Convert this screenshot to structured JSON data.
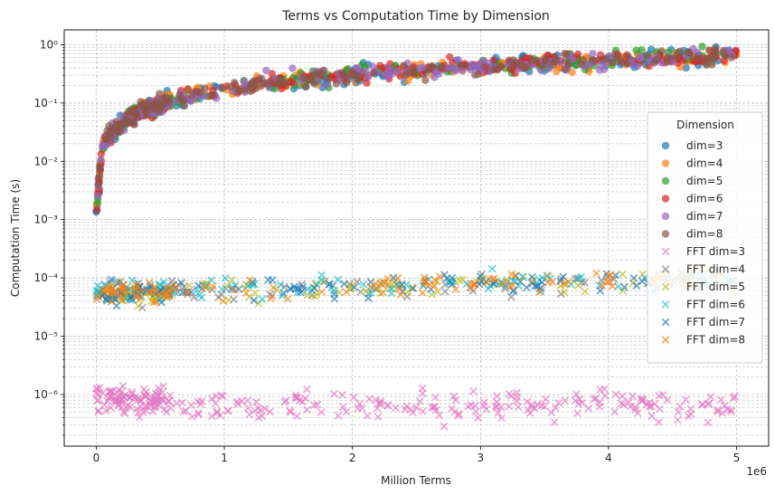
{
  "chart_data": {
    "type": "scatter",
    "title": "Terms vs Computation Time by Dimension",
    "xlabel": "Million Terms",
    "ylabel": "Computation Time (s)",
    "x_offset_label": "1e6",
    "xlim": [
      -250000,
      5250000
    ],
    "ylim": [
      1.3e-07,
      1.8
    ],
    "yscale": "log",
    "grid": true,
    "x_ticks": [
      0,
      1000000,
      2000000,
      3000000,
      4000000,
      5000000
    ],
    "x_tick_labels": [
      "0",
      "1",
      "2",
      "3",
      "4",
      "5"
    ],
    "y_ticks": [
      1e-06,
      1e-05,
      0.0001,
      0.001,
      0.01,
      0.1,
      1
    ],
    "y_tick_labels": [
      "10⁻⁶",
      "10⁻⁵",
      "10⁻⁴",
      "10⁻³",
      "10⁻²",
      "10⁻¹",
      "10⁰"
    ],
    "legend": {
      "title": "Dimension",
      "placement": "center-right"
    },
    "series": [
      {
        "name": "dim=3",
        "marker": "circle",
        "color": "#1f77b4",
        "model": "standard",
        "x_range": [
          0,
          5000000
        ]
      },
      {
        "name": "dim=4",
        "marker": "circle",
        "color": "#ff7f0e",
        "model": "standard",
        "x_range": [
          0,
          5000000
        ]
      },
      {
        "name": "dim=5",
        "marker": "circle",
        "color": "#2ca02c",
        "model": "standard",
        "x_range": [
          0,
          5000000
        ]
      },
      {
        "name": "dim=6",
        "marker": "circle",
        "color": "#d62728",
        "model": "standard",
        "x_range": [
          0,
          5000000
        ]
      },
      {
        "name": "dim=7",
        "marker": "circle",
        "color": "#9467bd",
        "model": "standard",
        "x_range": [
          0,
          5000000
        ]
      },
      {
        "name": "dim=8",
        "marker": "circle",
        "color": "#8c564b",
        "model": "standard",
        "x_range": [
          0,
          5000000
        ]
      },
      {
        "name": "FFT dim=3",
        "marker": "x",
        "color": "#e377c2",
        "model": "fft_low",
        "x_range": [
          0,
          5000000
        ]
      },
      {
        "name": "FFT dim=4",
        "marker": "x",
        "color": "#7f7f7f",
        "model": "fft",
        "x_range": [
          0,
          5000000
        ]
      },
      {
        "name": "FFT dim=5",
        "marker": "x",
        "color": "#bcbd22",
        "model": "fft",
        "x_range": [
          0,
          5000000
        ]
      },
      {
        "name": "FFT dim=6",
        "marker": "x",
        "color": "#17becf",
        "model": "fft",
        "x_range": [
          0,
          5000000
        ]
      },
      {
        "name": "FFT dim=7",
        "marker": "x",
        "color": "#1f77b4",
        "model": "fft",
        "x_range": [
          0,
          5000000
        ]
      },
      {
        "name": "FFT dim=8",
        "marker": "x",
        "color": "#ff7f0e",
        "model": "fft",
        "x_range": [
          0,
          5000000
        ]
      }
    ]
  }
}
